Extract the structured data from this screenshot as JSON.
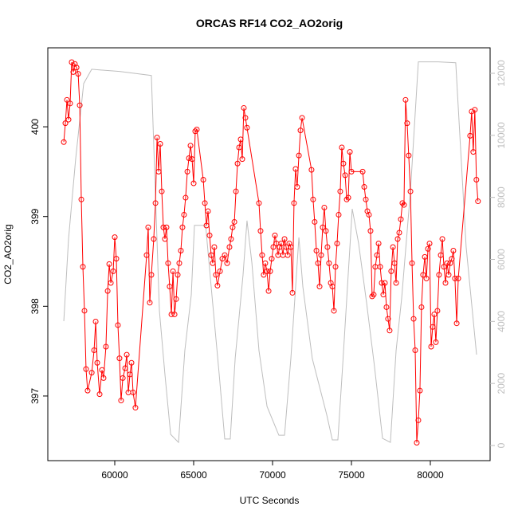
{
  "chart_data": {
    "type": "line",
    "title": "ORCAS RF14 CO2_AO2orig",
    "x_label": "UTC Seconds",
    "y_label": "CO2_AO2orig",
    "xlim": [
      55757,
      83788
    ],
    "ylim": [
      396.28,
      400.88
    ],
    "y2lim": [
      -488,
      12822
    ],
    "xticks": [
      60000,
      65000,
      70000,
      75000,
      80000
    ],
    "yticks": [
      397,
      398,
      399,
      400
    ],
    "y2ticks": [
      0,
      2000,
      4000,
      6000,
      8000,
      10000,
      12000
    ],
    "grid": false,
    "series": [
      {
        "color": "#ff0000",
        "markers": true,
        "x": [
          56770,
          56870,
          56970,
          57070,
          57170,
          57270,
          57370,
          57470,
          57580,
          57680,
          57780,
          57880,
          57980,
          58080,
          58180,
          58280,
          58540,
          58690,
          58790,
          58890,
          59040,
          59190,
          59290,
          59440,
          59550,
          59650,
          59750,
          59900,
          60000,
          60100,
          60200,
          60300,
          60400,
          60510,
          60660,
          60760,
          60860,
          60960,
          61060,
          61160,
          61310,
          62020,
          62120,
          62220,
          62320,
          62470,
          62580,
          62680,
          62780,
          62880,
          62980,
          63080,
          63180,
          63280,
          63380,
          63480,
          63590,
          63690,
          63790,
          63890,
          63990,
          64090,
          64190,
          64290,
          64390,
          64490,
          64600,
          64700,
          64800,
          64900,
          65000,
          65100,
          65200,
          65610,
          65710,
          65810,
          65910,
          66010,
          66110,
          66210,
          66310,
          66410,
          66510,
          66670,
          66820,
          66970,
          67120,
          67270,
          67370,
          67470,
          67580,
          67680,
          67780,
          67880,
          67980,
          68080,
          68180,
          68280,
          68380,
          69140,
          69240,
          69340,
          69440,
          69540,
          69650,
          69750,
          69850,
          69950,
          70050,
          70150,
          70250,
          70350,
          70450,
          70550,
          70660,
          70760,
          70860,
          70960,
          71060,
          71160,
          71260,
          71360,
          71460,
          71560,
          71670,
          71770,
          71870,
          72470,
          72570,
          72670,
          72780,
          72880,
          72980,
          73080,
          73180,
          73280,
          73380,
          73480,
          73580,
          73690,
          73790,
          73890,
          73990,
          74090,
          74190,
          74290,
          74390,
          74490,
          74600,
          74700,
          74800,
          74900,
          75000,
          75710,
          75810,
          75910,
          76010,
          76110,
          76210,
          76310,
          76410,
          76510,
          76620,
          76720,
          76820,
          76920,
          77020,
          77120,
          77220,
          77320,
          77420,
          77520,
          77630,
          77730,
          77830,
          77930,
          78030,
          78130,
          78230,
          78330,
          78430,
          78530,
          78630,
          78740,
          78840,
          78940,
          79040,
          79140,
          79240,
          79340,
          79440,
          79540,
          79650,
          79750,
          79850,
          79950,
          80050,
          80150,
          80250,
          80350,
          80450,
          80550,
          80660,
          80760,
          80860,
          80960,
          81060,
          81160,
          81260,
          81360,
          81460,
          81560,
          81670,
          81770,
          82520,
          82620,
          82720,
          82820,
          82920,
          83020
        ],
        "values": [
          399.83,
          400.04,
          400.3,
          400.08,
          400.26,
          400.72,
          400.61,
          400.7,
          400.66,
          400.59,
          400.24,
          399.19,
          398.44,
          397.95,
          397.3,
          397.06,
          397.26,
          397.51,
          397.83,
          397.37,
          397.02,
          397.29,
          397.2,
          397.55,
          398.17,
          398.47,
          398.26,
          398.39,
          398.77,
          398.53,
          397.79,
          397.42,
          396.95,
          397.2,
          397.31,
          397.46,
          397.04,
          397.24,
          397.37,
          397.04,
          396.87,
          398.57,
          398.88,
          398.04,
          398.35,
          398.75,
          399.15,
          399.88,
          399.5,
          399.81,
          399.28,
          398.88,
          398.75,
          398.88,
          398.48,
          398.22,
          397.91,
          398.39,
          397.91,
          398.08,
          398.35,
          398.48,
          398.62,
          398.88,
          399.02,
          399.21,
          399.5,
          399.65,
          399.79,
          399.64,
          399.37,
          399.95,
          399.97,
          399.41,
          399.15,
          398.9,
          399.06,
          398.79,
          398.57,
          398.48,
          398.66,
          398.35,
          398.23,
          398.39,
          398.53,
          398.57,
          398.48,
          398.66,
          398.75,
          398.88,
          398.94,
          399.28,
          399.59,
          399.77,
          399.86,
          399.64,
          400.21,
          400.1,
          399.99,
          399.15,
          398.84,
          398.57,
          398.35,
          398.48,
          398.39,
          398.17,
          398.39,
          398.53,
          398.66,
          398.79,
          398.7,
          398.57,
          398.66,
          398.7,
          398.57,
          398.75,
          398.66,
          398.57,
          398.7,
          398.66,
          398.15,
          399.15,
          399.53,
          399.33,
          399.68,
          399.96,
          400.1,
          399.52,
          399.19,
          398.94,
          398.62,
          398.48,
          398.22,
          398.57,
          398.88,
          399.1,
          398.84,
          398.66,
          398.48,
          398.26,
          398.22,
          397.95,
          398.44,
          398.7,
          399.02,
          399.28,
          399.77,
          399.59,
          399.46,
          399.19,
          399.21,
          399.72,
          399.5,
          399.5,
          399.33,
          399.19,
          399.06,
          399.02,
          398.84,
          398.11,
          398.13,
          398.44,
          398.57,
          398.7,
          398.44,
          398.26,
          398.13,
          398.26,
          397.99,
          397.86,
          397.73,
          398.39,
          398.66,
          398.48,
          398.26,
          398.75,
          398.82,
          398.97,
          399.15,
          399.13,
          400.3,
          400.04,
          399.68,
          399.28,
          398.48,
          397.86,
          397.51,
          396.48,
          396.73,
          397.06,
          397.99,
          398.35,
          398.55,
          398.31,
          398.64,
          398.7,
          397.55,
          397.77,
          397.91,
          397.6,
          397.95,
          398.35,
          398.57,
          398.75,
          398.44,
          398.26,
          398.48,
          398.35,
          398.48,
          398.53,
          398.62,
          398.31,
          397.81,
          398.31,
          399.9,
          400.17,
          399.72,
          400.19,
          399.41,
          399.17
        ]
      },
      {
        "color": "#bebebe",
        "axis": "y2",
        "markers": false,
        "x": [
          56770,
          57070,
          57520,
          58030,
          58540,
          59040,
          60300,
          62320,
          62830,
          63180,
          63540,
          64040,
          64440,
          64850,
          65050,
          65760,
          66110,
          66620,
          66970,
          67320,
          67630,
          68130,
          68380,
          68690,
          69140,
          69650,
          70400,
          70760,
          71160,
          71670,
          71920,
          72520,
          73430,
          73790,
          74140,
          74440,
          75050,
          75450,
          75960,
          76460,
          76970,
          77470,
          77830,
          78180,
          78740,
          79240,
          80500,
          81610,
          82270,
          82930
        ],
        "values": [
          4010,
          6660,
          9230,
          11670,
          12130,
          12110,
          12060,
          11930,
          4340,
          2290,
          360,
          100,
          3060,
          4860,
          7100,
          7100,
          5120,
          2290,
          210,
          210,
          2800,
          5500,
          7250,
          5890,
          3060,
          1260,
          330,
          330,
          2800,
          6710,
          5120,
          2800,
          1000,
          180,
          180,
          2550,
          7630,
          6530,
          4600,
          2550,
          230,
          100,
          3060,
          4730,
          8200,
          12370,
          12370,
          12340,
          6400,
          2930
        ]
      }
    ]
  }
}
